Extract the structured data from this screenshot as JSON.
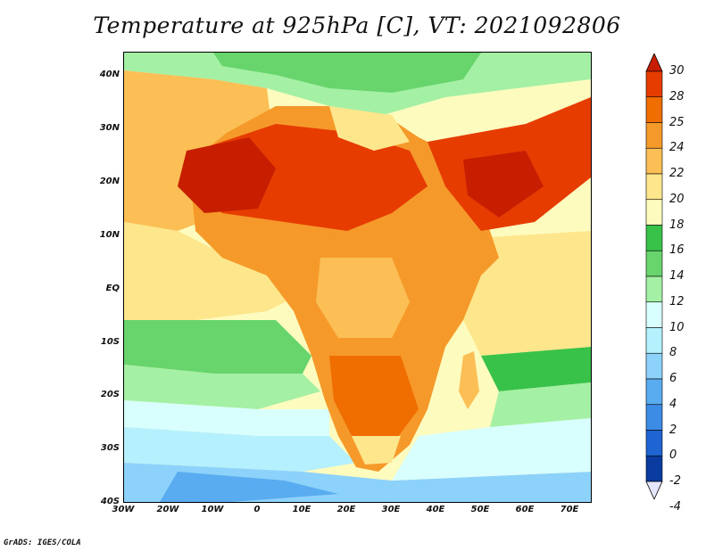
{
  "title": "Temperature at 925hPa [C], VT: 2021092806",
  "credit": "GrADS: IGES/COLA",
  "map": {
    "lat_labels": [
      "40N",
      "30N",
      "20N",
      "10N",
      "EQ",
      "10S",
      "20S",
      "30S",
      "40S"
    ],
    "lon_labels": [
      "30W",
      "20W",
      "10W",
      "0",
      "10E",
      "20E",
      "30E",
      "40E",
      "50E",
      "60E",
      "70E"
    ],
    "lat_range": [
      -40,
      45
    ],
    "lon_range": [
      -30,
      75
    ]
  },
  "colorbar": {
    "labels": [
      "30",
      "28",
      "25",
      "24",
      "22",
      "20",
      "18",
      "16",
      "14",
      "12",
      "10",
      "8",
      "6",
      "4",
      "2",
      "0",
      "-2",
      "-4"
    ],
    "colors": [
      "#c81e00",
      "#e63c00",
      "#f06e00",
      "#f59a2a",
      "#fbbf55",
      "#fde68c",
      "#fefbbe",
      "#39c24a",
      "#67d46c",
      "#a4f0a4",
      "#d8fefe",
      "#b4f0fe",
      "#8cd2fa",
      "#5aacf0",
      "#3c8ce6",
      "#1e64d2",
      "#0a3ca0",
      "#04146e"
    ]
  }
}
